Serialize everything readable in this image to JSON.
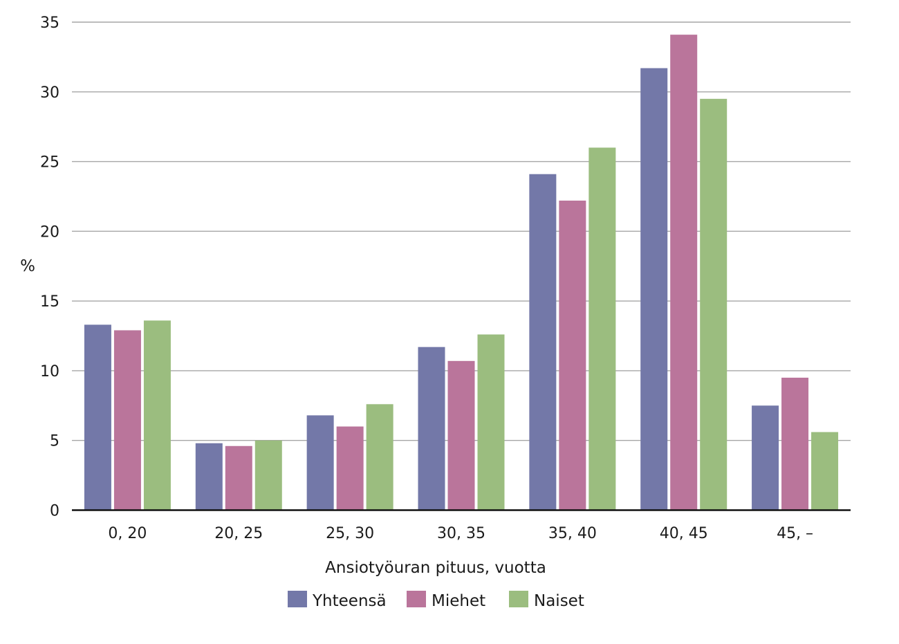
{
  "chart_data": {
    "type": "bar",
    "title": "",
    "xlabel": "Ansiotyöuran pituus, vuotta",
    "ylabel": "%",
    "ylim": [
      0,
      35
    ],
    "yticks": [
      "0",
      "5",
      "10",
      "15",
      "20",
      "25",
      "30",
      "35"
    ],
    "grid": true,
    "legend_position": "bottom",
    "categories": [
      "0, 20",
      "20, 25",
      "25, 30",
      "30, 35",
      "35, 40",
      "40, 45",
      "45, –"
    ],
    "series": [
      {
        "name": "Yhteensä",
        "color": "#7378a8",
        "values": [
          13.3,
          4.8,
          6.8,
          11.7,
          24.1,
          31.7,
          7.5
        ]
      },
      {
        "name": "Miehet",
        "color": "#ba759b",
        "values": [
          12.9,
          4.6,
          6.0,
          10.7,
          22.2,
          34.1,
          9.5
        ]
      },
      {
        "name": "Naiset",
        "color": "#9bbd7f",
        "values": [
          13.6,
          5.0,
          7.6,
          12.6,
          26.0,
          29.5,
          5.6
        ]
      }
    ]
  }
}
